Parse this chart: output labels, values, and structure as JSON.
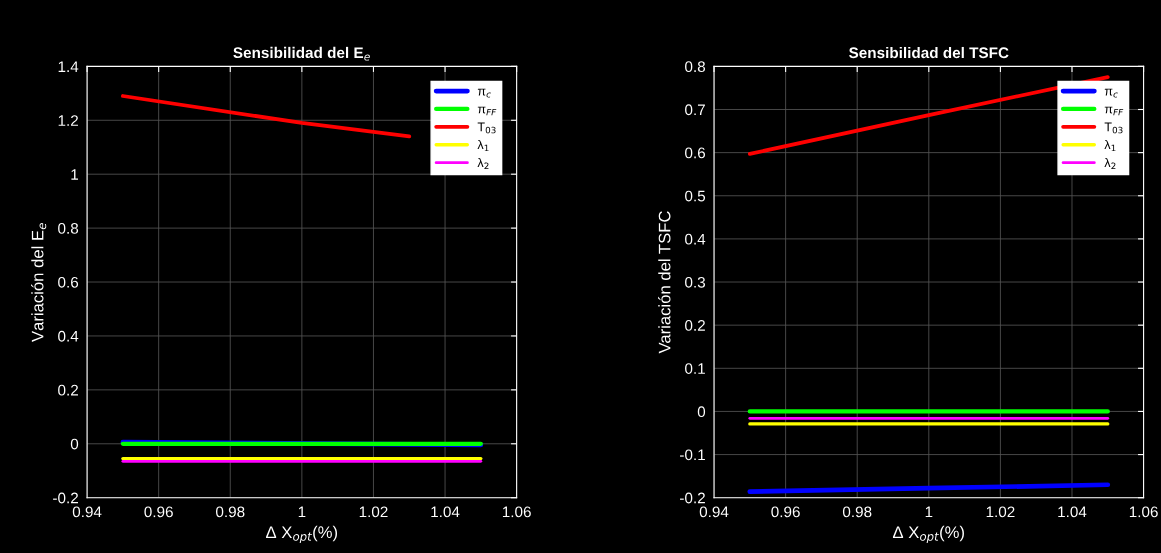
{
  "chart_data": [
    {
      "type": "line",
      "title": "Sensibilidad del E$_{e}$",
      "xlabel": "Δ X$_{opt}$(%)",
      "ylabel": "Variación del E$_{e}$",
      "x": [
        0.95,
        1.0,
        1.05
      ],
      "xlim": [
        0.94,
        1.06
      ],
      "xticks": [
        0.94,
        0.96,
        0.98,
        1,
        1.02,
        1.04,
        1.06
      ],
      "ylim": [
        -0.2,
        1.4
      ],
      "yticks": [
        -0.2,
        0,
        0.2,
        0.4,
        0.6,
        0.8,
        1,
        1.2,
        1.4
      ],
      "grid": true,
      "legend": "top right",
      "series": [
        {
          "name": "π$_{c}$",
          "color": "#0000ff",
          "x": [
            0.95,
            1.05
          ],
          "values": [
            0.006,
            -0.004
          ]
        },
        {
          "name": "π$_{FF}$",
          "color": "#00ff00",
          "values": [
            0.0,
            0.0,
            0.0
          ]
        },
        {
          "name": "T$_{03}$",
          "color": "#ff0000",
          "x": [
            0.95,
            1.0,
            1.03
          ],
          "values": [
            1.29,
            1.19,
            1.14
          ]
        },
        {
          "name": "λ$_{1}$",
          "color": "#ffff00",
          "values": [
            -0.055,
            -0.055,
            -0.055
          ]
        },
        {
          "name": "λ$_{2}$",
          "color": "#ff00ff",
          "values": [
            -0.065,
            -0.065,
            -0.065
          ]
        }
      ]
    },
    {
      "type": "line",
      "title": "Sensibilidad del TSFC",
      "xlabel": "Δ X$_{opt}$(%)",
      "ylabel": "Variación del TSFC",
      "x": [
        0.95,
        1.0,
        1.05
      ],
      "xlim": [
        0.94,
        1.06
      ],
      "xticks": [
        0.94,
        0.96,
        0.98,
        1,
        1.02,
        1.04,
        1.06
      ],
      "ylim": [
        -0.2,
        0.8
      ],
      "yticks": [
        -0.2,
        -0.1,
        0,
        0.1,
        0.2,
        0.3,
        0.4,
        0.5,
        0.6,
        0.7,
        0.8
      ],
      "grid": true,
      "legend": "top right",
      "series": [
        {
          "name": "π$_{c}$",
          "color": "#0000ff",
          "values": [
            -0.186,
            -0.178,
            -0.17
          ]
        },
        {
          "name": "π$_{FF}$",
          "color": "#00ff00",
          "values": [
            0.0,
            0.0,
            0.0
          ]
        },
        {
          "name": "T$_{03}$",
          "color": "#ff0000",
          "values": [
            0.597,
            0.687,
            0.775
          ]
        },
        {
          "name": "λ$_{1}$",
          "color": "#ffff00",
          "values": [
            -0.029,
            -0.029,
            -0.029
          ]
        },
        {
          "name": "λ$_{2}$",
          "color": "#ff00ff",
          "values": [
            -0.016,
            -0.016,
            -0.016
          ]
        }
      ]
    }
  ]
}
